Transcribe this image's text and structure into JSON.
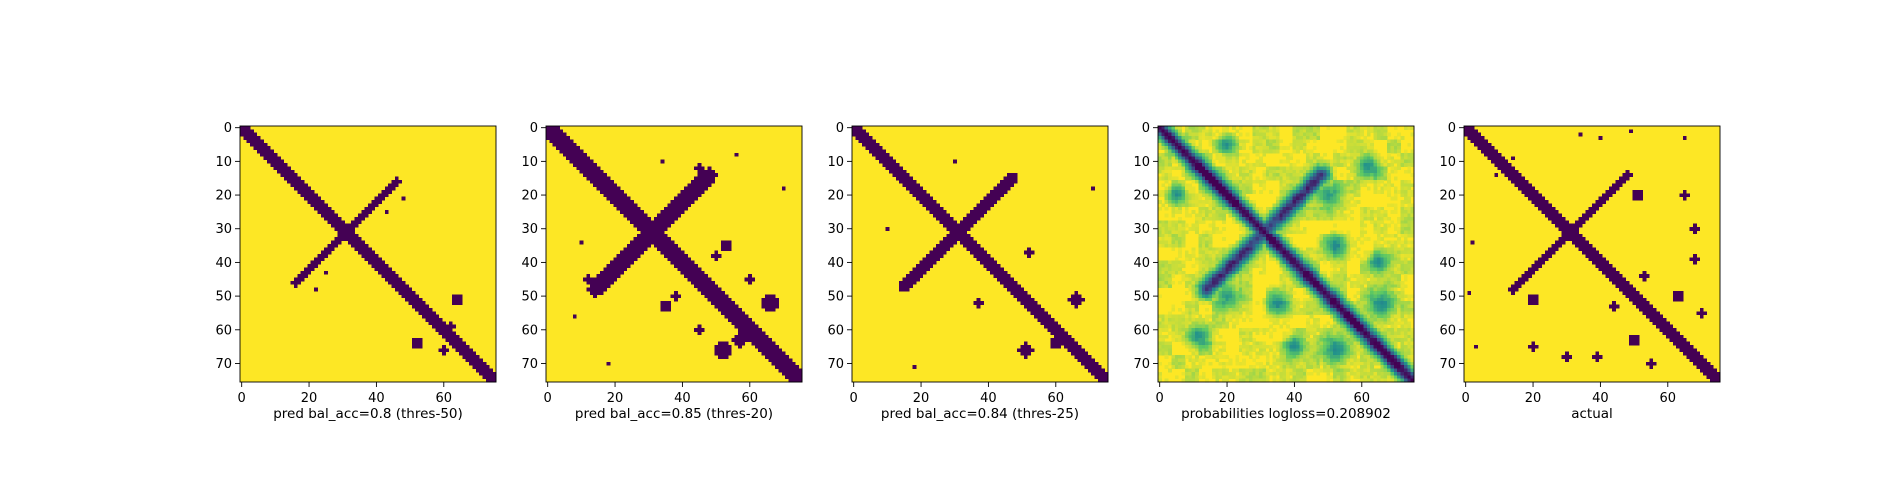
{
  "colors": {
    "background": "#440154",
    "foreground": "#fde725",
    "viridis": [
      "#440154",
      "#3b528b",
      "#21918c",
      "#5ec962",
      "#fde725"
    ]
  },
  "chart_data": [
    {
      "type": "heatmap",
      "xlabel": "pred bal_acc=0.8 (thres-50)",
      "size": 76,
      "xticks": [
        0,
        20,
        40,
        60
      ],
      "yticks": [
        0,
        10,
        20,
        30,
        40,
        50,
        60,
        70
      ],
      "value_type": "binary",
      "main_diagonal_halfwidth": 1.5,
      "anti_diagonal": {
        "from": [
          46,
          16
        ],
        "to": [
          16,
          46
        ],
        "halfwidth": 1.2
      },
      "blobs": [
        {
          "row": 51,
          "col": 64,
          "r": 1.8
        },
        {
          "row": 64,
          "col": 52,
          "r": 1.8
        },
        {
          "row": 59,
          "col": 62,
          "r": 1.2
        },
        {
          "row": 21,
          "col": 48,
          "r": 0.8
        },
        {
          "row": 48,
          "col": 22,
          "r": 0.8
        },
        {
          "row": 25,
          "col": 43,
          "r": 0.9
        },
        {
          "row": 43,
          "col": 25,
          "r": 0.9
        },
        {
          "row": 66,
          "col": 60,
          "r": 1.0
        }
      ]
    },
    {
      "type": "heatmap",
      "xlabel": "pred bal_acc=0.85 (thres-20)",
      "size": 76,
      "xticks": [
        0,
        20,
        40,
        60
      ],
      "yticks": [
        0,
        10,
        20,
        30,
        40,
        50,
        60,
        70
      ],
      "value_type": "binary",
      "main_diagonal_halfwidth": 2.4,
      "anti_diagonal": {
        "from": [
          48,
          14
        ],
        "to": [
          14,
          48
        ],
        "halfwidth": 2.2
      },
      "blobs": [
        {
          "row": 32,
          "col": 32,
          "r": 3.0
        },
        {
          "row": 52,
          "col": 66,
          "r": 2.6
        },
        {
          "row": 66,
          "col": 52,
          "r": 2.6
        },
        {
          "row": 63,
          "col": 57,
          "r": 2.0
        },
        {
          "row": 35,
          "col": 53,
          "r": 1.5
        },
        {
          "row": 53,
          "col": 35,
          "r": 1.5
        },
        {
          "row": 8,
          "col": 56,
          "r": 0.8
        },
        {
          "row": 56,
          "col": 8,
          "r": 0.8
        },
        {
          "row": 10,
          "col": 34,
          "r": 0.8
        },
        {
          "row": 34,
          "col": 10,
          "r": 0.8
        },
        {
          "row": 38,
          "col": 50,
          "r": 1.2
        },
        {
          "row": 50,
          "col": 38,
          "r": 1.2
        },
        {
          "row": 60,
          "col": 45,
          "r": 1.0
        },
        {
          "row": 45,
          "col": 60,
          "r": 1.0
        },
        {
          "row": 70,
          "col": 18,
          "r": 0.8
        },
        {
          "row": 18,
          "col": 70,
          "r": 0.8
        },
        {
          "row": 45,
          "col": 12,
          "r": 1.2
        },
        {
          "row": 12,
          "col": 45,
          "r": 1.2
        }
      ]
    },
    {
      "type": "heatmap",
      "xlabel": "pred bal_acc=0.84 (thres-25)",
      "size": 76,
      "xticks": [
        0,
        20,
        40,
        60
      ],
      "yticks": [
        0,
        10,
        20,
        30,
        40,
        50,
        60,
        70
      ],
      "value_type": "binary",
      "main_diagonal_halfwidth": 2.1,
      "anti_diagonal": {
        "from": [
          47,
          15
        ],
        "to": [
          15,
          47
        ],
        "halfwidth": 1.9
      },
      "blobs": [
        {
          "row": 31,
          "col": 31,
          "r": 2.6
        },
        {
          "row": 51,
          "col": 66,
          "r": 2.2
        },
        {
          "row": 66,
          "col": 51,
          "r": 2.2
        },
        {
          "row": 37,
          "col": 52,
          "r": 1.3
        },
        {
          "row": 52,
          "col": 37,
          "r": 1.3
        },
        {
          "row": 10,
          "col": 30,
          "r": 0.8
        },
        {
          "row": 30,
          "col": 10,
          "r": 0.8
        },
        {
          "row": 71,
          "col": 18,
          "r": 0.8
        },
        {
          "row": 18,
          "col": 71,
          "r": 0.8
        },
        {
          "row": 64,
          "col": 60,
          "r": 1.5
        }
      ]
    },
    {
      "type": "heatmap",
      "xlabel": "probabilities logloss=0.208902",
      "size": 76,
      "xticks": [
        0,
        20,
        40,
        60
      ],
      "yticks": [
        0,
        10,
        20,
        30,
        40,
        50,
        60,
        70
      ],
      "value_type": "continuous",
      "main_diagonal_halfwidth": 2.2,
      "anti_diagonal": {
        "from": [
          48,
          14
        ],
        "to": [
          14,
          48
        ],
        "halfwidth": 2.4
      },
      "blobs": [
        {
          "row": 52,
          "col": 66,
          "r": 2.6
        },
        {
          "row": 66,
          "col": 52,
          "r": 2.6
        },
        {
          "row": 35,
          "col": 52,
          "r": 2.0
        },
        {
          "row": 52,
          "col": 35,
          "r": 2.0
        },
        {
          "row": 20,
          "col": 50,
          "r": 2.2
        },
        {
          "row": 50,
          "col": 20,
          "r": 2.2
        },
        {
          "row": 12,
          "col": 62,
          "r": 2.0
        },
        {
          "row": 62,
          "col": 12,
          "r": 2.0
        },
        {
          "row": 40,
          "col": 65,
          "r": 1.8
        },
        {
          "row": 65,
          "col": 40,
          "r": 1.8
        },
        {
          "row": 5,
          "col": 20,
          "r": 1.6
        },
        {
          "row": 20,
          "col": 5,
          "r": 1.6
        }
      ]
    },
    {
      "type": "heatmap",
      "xlabel": "actual",
      "size": 76,
      "xticks": [
        0,
        20,
        40,
        60
      ],
      "yticks": [
        0,
        10,
        20,
        30,
        40,
        50,
        60,
        70
      ],
      "value_type": "binary",
      "main_diagonal_halfwidth": 1.6,
      "anti_diagonal": {
        "from": [
          48,
          14
        ],
        "to": [
          14,
          48
        ],
        "halfwidth": 1.4
      },
      "blobs": [
        {
          "row": 31,
          "col": 31,
          "r": 2.0
        },
        {
          "row": 20,
          "col": 51,
          "r": 1.6
        },
        {
          "row": 51,
          "col": 20,
          "r": 1.6
        },
        {
          "row": 20,
          "col": 65,
          "r": 1.3
        },
        {
          "row": 65,
          "col": 20,
          "r": 1.3
        },
        {
          "row": 30,
          "col": 68,
          "r": 1.2
        },
        {
          "row": 68,
          "col": 30,
          "r": 1.2
        },
        {
          "row": 39,
          "col": 68,
          "r": 1.3
        },
        {
          "row": 68,
          "col": 39,
          "r": 1.3
        },
        {
          "row": 50,
          "col": 63,
          "r": 1.6
        },
        {
          "row": 63,
          "col": 50,
          "r": 1.6
        },
        {
          "row": 55,
          "col": 70,
          "r": 1.3
        },
        {
          "row": 70,
          "col": 55,
          "r": 1.3
        },
        {
          "row": 44,
          "col": 53,
          "r": 1.0
        },
        {
          "row": 53,
          "col": 44,
          "r": 1.0
        },
        {
          "row": 2,
          "col": 34,
          "r": 0.8
        },
        {
          "row": 34,
          "col": 2,
          "r": 0.8
        },
        {
          "row": 3,
          "col": 40,
          "r": 0.8
        },
        {
          "row": 3,
          "col": 65,
          "r": 0.7
        },
        {
          "row": 65,
          "col": 3,
          "r": 0.7
        },
        {
          "row": 9,
          "col": 14,
          "r": 0.7
        },
        {
          "row": 14,
          "col": 9,
          "r": 0.7
        },
        {
          "row": 49,
          "col": 1,
          "r": 0.8
        },
        {
          "row": 1,
          "col": 49,
          "r": 0.8
        }
      ]
    }
  ]
}
